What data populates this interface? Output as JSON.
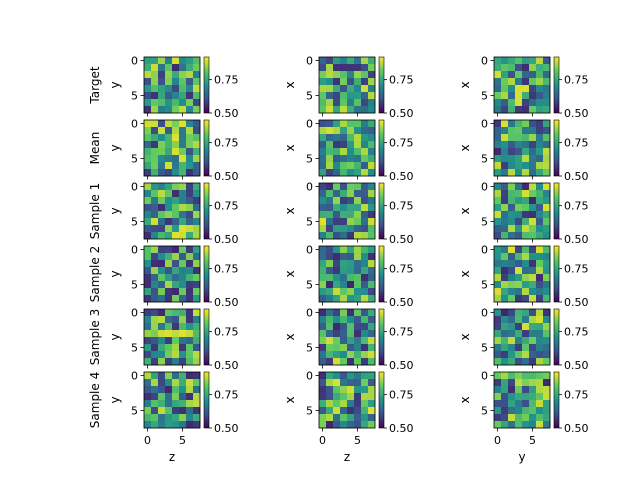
{
  "chart_data": {
    "type": "heatmap",
    "grid": {
      "rows": 6,
      "cols": 3
    },
    "row_labels": [
      "Target",
      "Mean",
      "Sample 1",
      "Sample 2",
      "Sample 3",
      "Sample 4"
    ],
    "col_xlabels": [
      "z",
      "z",
      "y"
    ],
    "col_ylabels": [
      "y",
      "x",
      "x"
    ],
    "x_ticks": [
      "0",
      "5"
    ],
    "y_ticks": [
      "0",
      "5"
    ],
    "colorbar": {
      "ticks": [
        "0.50",
        "0.75"
      ],
      "range": [
        0.5,
        0.92
      ],
      "colormap": "viridis"
    },
    "matrix_size": [
      8,
      8
    ],
    "x_range": [
      0,
      7
    ],
    "y_range": [
      0,
      7
    ],
    "seed": 20240607,
    "cells": []
  }
}
